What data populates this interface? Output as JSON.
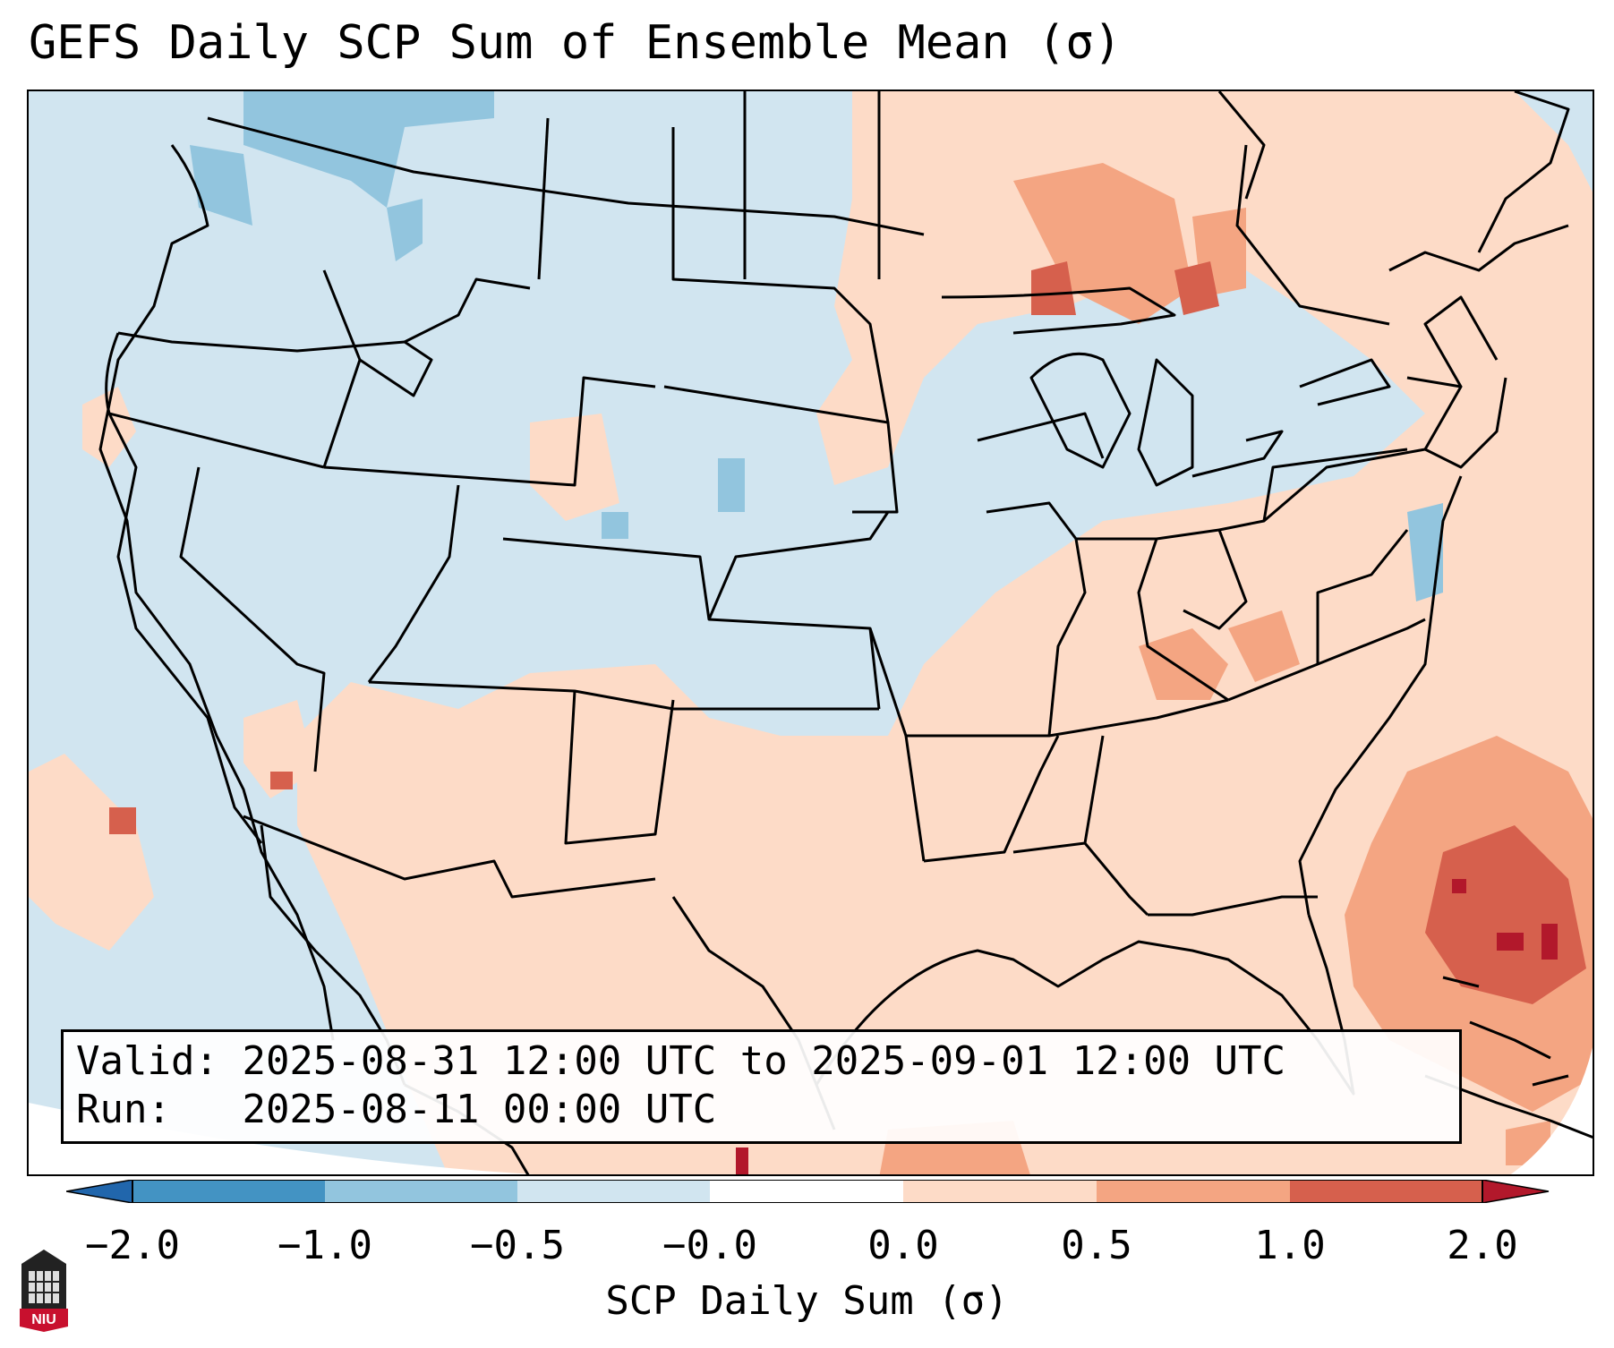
{
  "title": "GEFS Daily SCP Sum of Ensemble Mean (σ)",
  "info": {
    "valid_label": "Valid:",
    "valid_value": "2025-08-31 12:00 UTC to 2025-09-01 12:00 UTC",
    "run_label": "Run:",
    "run_value": "2025-08-11 00:00 UTC"
  },
  "colorbar": {
    "label": "SCP Daily Sum (σ)",
    "ticks": [
      "−2.0",
      "−1.0",
      "−0.5",
      "−0.0",
      "0.0",
      "0.5",
      "1.0",
      "2.0"
    ],
    "colors": [
      "#2166ac",
      "#4393c3",
      "#92c5de",
      "#d1e5f0",
      "#ffffff",
      "#fddbc7",
      "#f4a582",
      "#d6604d",
      "#b2182b"
    ],
    "extend": "both"
  },
  "map": {
    "region": "CONUS",
    "background_color": "#d1e5f0",
    "positive_region_color": "#fddbc7",
    "moderate_color": "#f4a582",
    "high_color": "#d6604d",
    "negative_color": "#92c5de"
  },
  "logo": {
    "name": "NIU",
    "icon": "niu-logo-icon"
  }
}
